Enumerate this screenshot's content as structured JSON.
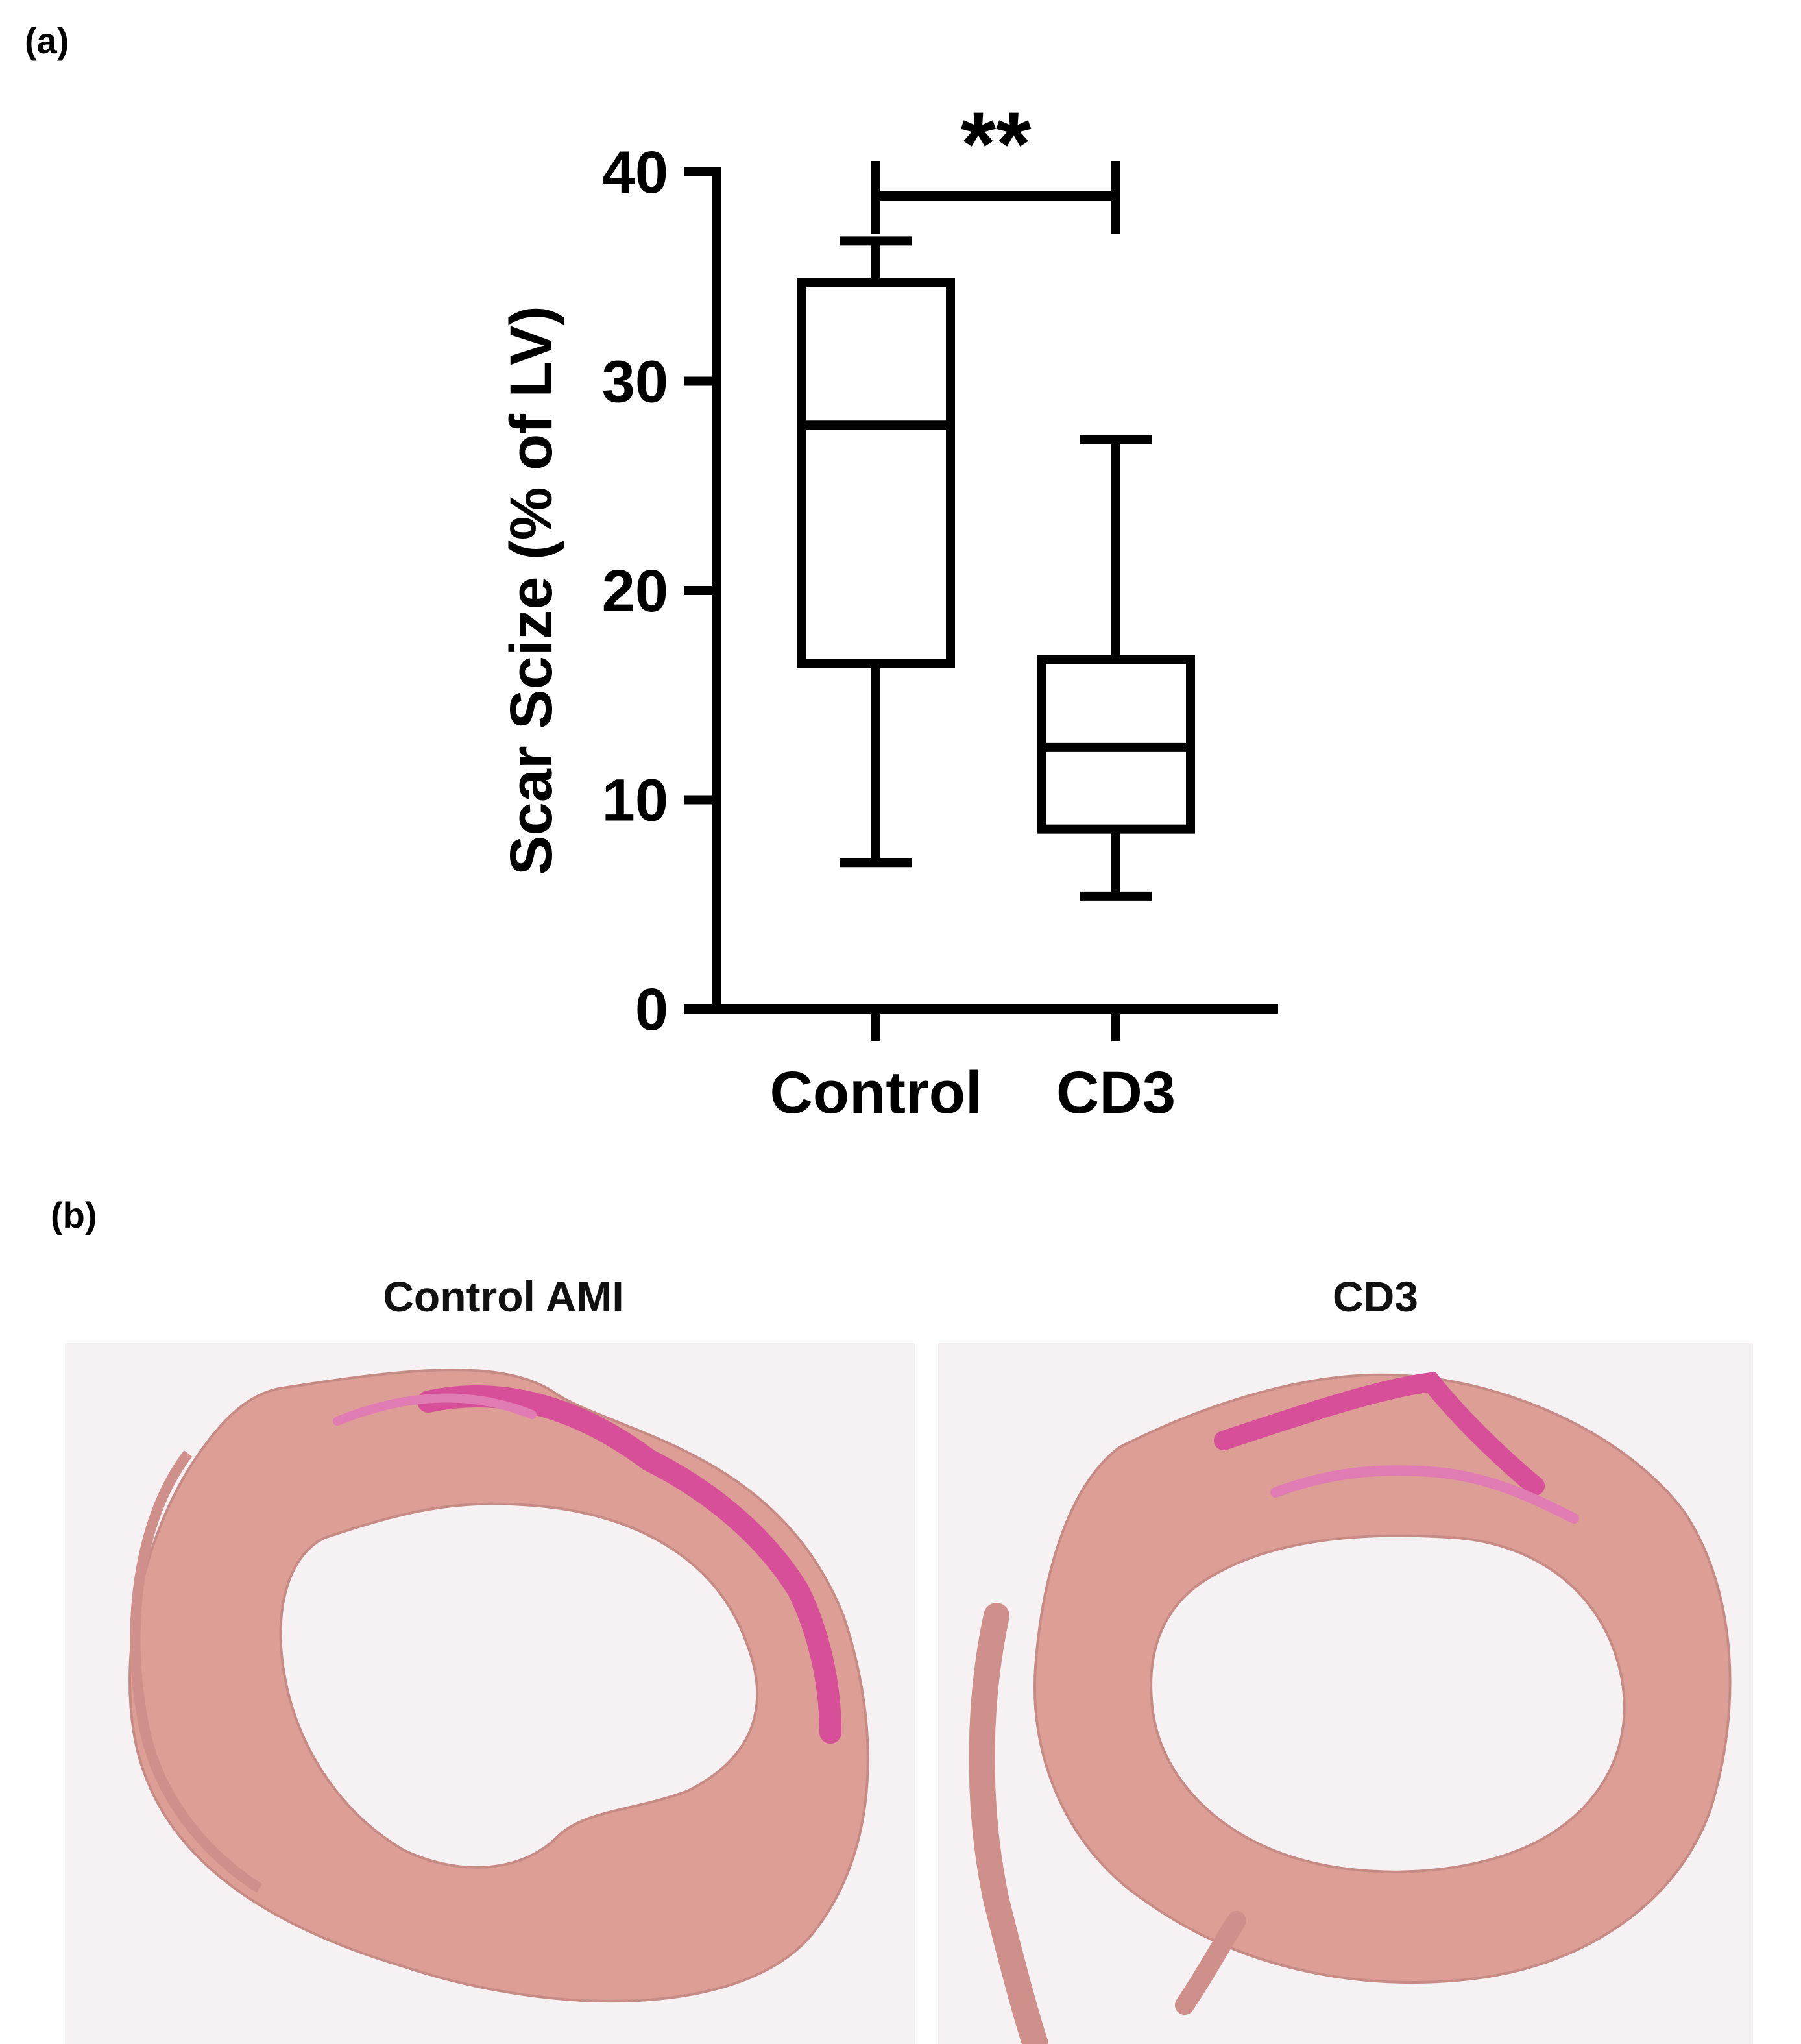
{
  "panel_a_label": "(a)",
  "panel_b_label": "(b)",
  "chart_data": {
    "type": "box",
    "title": "",
    "xlabel": "",
    "ylabel": "Scar Scize (% of LV)",
    "ylim": [
      0,
      40
    ],
    "yticks": [
      0,
      10,
      20,
      30,
      40
    ],
    "grid": false,
    "categories": [
      "Control",
      "CD3"
    ],
    "boxes": [
      {
        "category": "Control",
        "min": 7.0,
        "q1": 16.5,
        "median": 27.9,
        "q3": 34.7,
        "max": 36.7
      },
      {
        "category": "CD3",
        "min": 5.4,
        "q1": 8.6,
        "median": 12.5,
        "q3": 16.7,
        "max": 27.2
      }
    ],
    "annotations": [
      {
        "type": "significance",
        "between": [
          "Control",
          "CD3"
        ],
        "text": "**"
      }
    ],
    "colors": {
      "stroke": "#000000",
      "fill": "#ffffff"
    }
  },
  "images": [
    {
      "title": "Control AMI",
      "description": "heart-section-icon"
    },
    {
      "title": "CD3",
      "description": "heart-section-icon"
    }
  ],
  "colors": {
    "tissue": "#dc9e95",
    "scar": "#d64f98",
    "background": "#ffffff",
    "photo_bg": "#f6f1f2"
  }
}
